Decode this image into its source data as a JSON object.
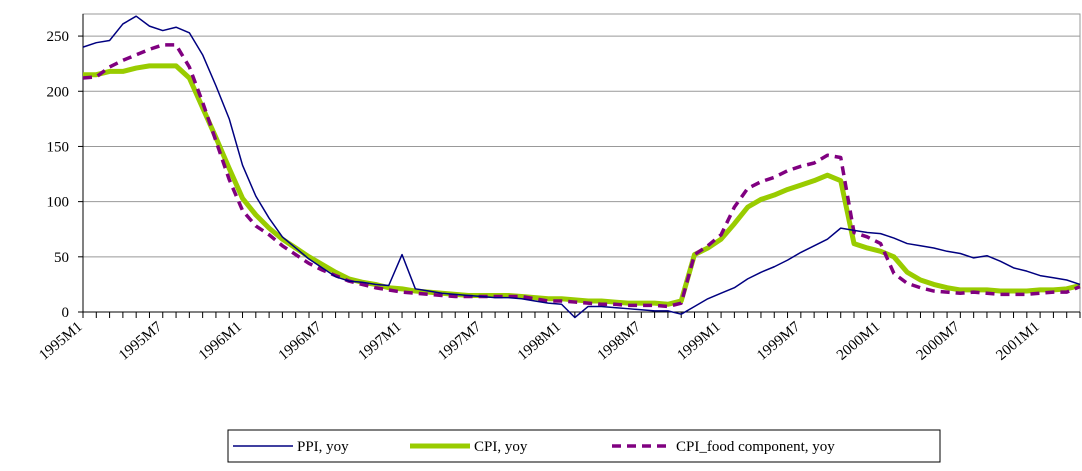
{
  "chart_data": {
    "type": "line",
    "categories": [
      "1995M1",
      null,
      null,
      null,
      null,
      null,
      "1995M7",
      null,
      null,
      null,
      null,
      null,
      "1996M1",
      null,
      null,
      null,
      null,
      null,
      "1996M7",
      null,
      null,
      null,
      null,
      null,
      "1997M1",
      null,
      null,
      null,
      null,
      null,
      "1997M7",
      null,
      null,
      null,
      null,
      null,
      "1998M1",
      null,
      null,
      null,
      null,
      null,
      "1998M7",
      null,
      null,
      null,
      null,
      null,
      "1999M1",
      null,
      null,
      null,
      null,
      null,
      "1999M7",
      null,
      null,
      null,
      null,
      null,
      "2000M1",
      null,
      null,
      null,
      null,
      null,
      "2000M7",
      null,
      null,
      null,
      null,
      null,
      "2001M1",
      null,
      null,
      null
    ],
    "series": [
      {
        "name": "PPI, yoy",
        "color": "#000080",
        "linestyle": "solid",
        "values": [
          240,
          244,
          246,
          261,
          268,
          259,
          255,
          258,
          253,
          233,
          205,
          175,
          133,
          105,
          85,
          68,
          58,
          48,
          40,
          32,
          28,
          27,
          25,
          24,
          52,
          21,
          19,
          17,
          16,
          15,
          14,
          13,
          13,
          12,
          10,
          8,
          7,
          -5,
          5,
          5,
          4,
          3,
          2,
          1,
          1,
          -2,
          5,
          12,
          17,
          22,
          30,
          36,
          41,
          47,
          54,
          60,
          66,
          76,
          74,
          72,
          71,
          67,
          62,
          60,
          58,
          55,
          53,
          49,
          51,
          46,
          40,
          37,
          33,
          31,
          29,
          25
        ]
      },
      {
        "name": "CPI, yoy",
        "color": "#99cc00",
        "linestyle": "solid",
        "values": [
          215,
          215,
          218,
          218,
          221,
          223,
          223,
          223,
          212,
          185,
          158,
          130,
          103,
          88,
          76,
          66,
          58,
          50,
          43,
          36,
          30,
          27,
          25,
          22,
          21,
          19,
          18,
          17,
          16,
          15,
          15,
          15,
          15,
          14,
          13,
          12,
          12,
          11,
          10,
          10,
          9,
          8,
          8,
          8,
          7,
          10,
          52,
          58,
          66,
          80,
          95,
          102,
          106,
          111,
          115,
          119,
          124,
          119,
          62,
          58,
          55,
          50,
          36,
          29,
          25,
          22,
          20,
          20,
          20,
          19,
          19,
          19,
          20,
          20,
          21,
          24
        ]
      },
      {
        "name": "CPI_food component, yoy",
        "color": "#800080",
        "linestyle": "dashed",
        "values": [
          212,
          213,
          222,
          228,
          233,
          238,
          242,
          242,
          222,
          190,
          155,
          120,
          92,
          78,
          70,
          60,
          52,
          44,
          38,
          33,
          28,
          25,
          22,
          20,
          18,
          17,
          16,
          15,
          14,
          14,
          14,
          14,
          14,
          14,
          12,
          10,
          10,
          9,
          8,
          7,
          7,
          6,
          6,
          6,
          5,
          8,
          52,
          60,
          70,
          95,
          112,
          118,
          122,
          128,
          132,
          135,
          142,
          140,
          72,
          68,
          62,
          35,
          26,
          22,
          19,
          18,
          17,
          18,
          17,
          16,
          16,
          16,
          17,
          18,
          18,
          23
        ]
      }
    ],
    "ylim": [
      0,
      270
    ],
    "yticks": [
      0,
      50,
      100,
      150,
      200,
      250
    ],
    "grid": true,
    "legend": "bottom"
  }
}
